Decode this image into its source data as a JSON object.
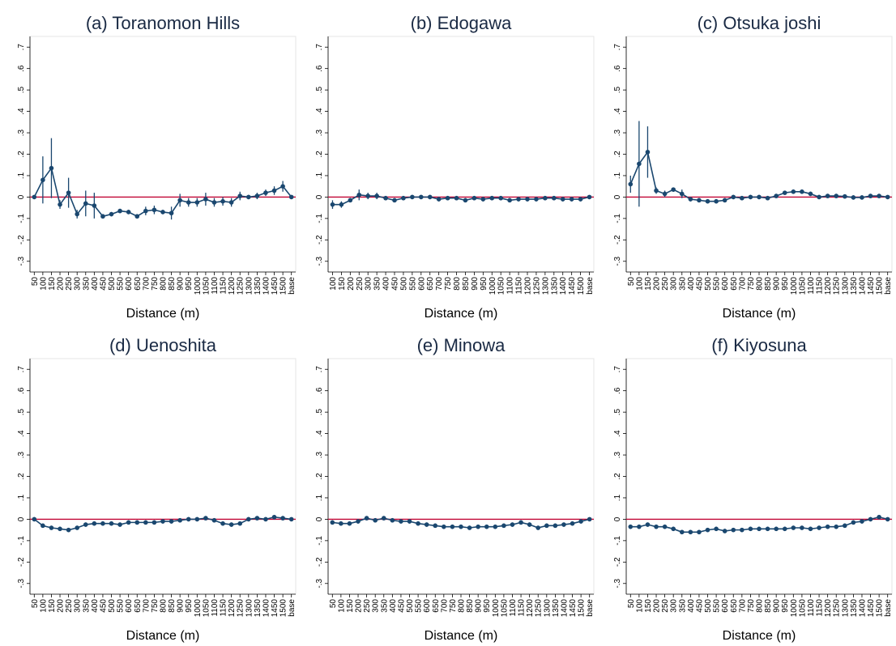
{
  "chart_data": [
    {
      "type": "line",
      "title": "(a) Toranomon Hills",
      "x_label": "Distance (m)",
      "color": "#1a476f",
      "reference_line": 0,
      "reference_color": "#c10534",
      "categories": [
        "50",
        "100",
        "150",
        "200",
        "250",
        "300",
        "350",
        "400",
        "450",
        "500",
        "550",
        "600",
        "650",
        "700",
        "750",
        "800",
        "850",
        "900",
        "950",
        "1000",
        "1050",
        "1100",
        "1150",
        "1200",
        "1250",
        "1300",
        "1350",
        "1400",
        "1450",
        "1500",
        "base"
      ],
      "values": [
        0,
        0.08,
        0.135,
        -0.035,
        0.02,
        -0.08,
        -0.03,
        -0.04,
        -0.09,
        -0.08,
        -0.065,
        -0.07,
        -0.09,
        -0.065,
        -0.06,
        -0.07,
        -0.075,
        -0.015,
        -0.025,
        -0.025,
        -0.01,
        -0.025,
        -0.02,
        -0.025,
        0.005,
        0,
        0.005,
        0.02,
        0.03,
        0.05,
        0
      ],
      "errors": [
        0,
        0.11,
        0.14,
        0.02,
        0.07,
        0.02,
        0.06,
        0.06,
        0.01,
        0.01,
        0.01,
        0.01,
        0.01,
        0.02,
        0.02,
        0.01,
        0.03,
        0.03,
        0.02,
        0.02,
        0.03,
        0.02,
        0.02,
        0.02,
        0.02,
        0.01,
        0.015,
        0.015,
        0.02,
        0.025,
        0
      ],
      "ylim": [
        -0.35,
        0.75
      ],
      "yticks": [
        {
          "value": -0.3,
          "label": "-.3"
        },
        {
          "value": -0.2,
          "label": "-.2"
        },
        {
          "value": -0.1,
          "label": "-.1"
        },
        0,
        {
          "value": 0.1,
          "label": ".1"
        },
        {
          "value": 0.2,
          "label": ".2"
        },
        {
          "value": 0.3,
          "label": ".3"
        },
        {
          "value": 0.4,
          "label": ".4"
        },
        {
          "value": 0.5,
          "label": ".5"
        },
        {
          "value": 0.6,
          "label": ".6"
        },
        {
          "value": 0.7,
          "label": ".7"
        }
      ]
    },
    {
      "type": "line",
      "title": "(b) Edogawa",
      "x_label": "Distance (m)",
      "color": "#1a476f",
      "reference_line": 0,
      "reference_color": "#c10534",
      "categories": [
        "100",
        "150",
        "200",
        "250",
        "300",
        "350",
        "400",
        "450",
        "500",
        "550",
        "600",
        "650",
        "700",
        "750",
        "800",
        "850",
        "900",
        "950",
        "1000",
        "1050",
        "1100",
        "1150",
        "1200",
        "1250",
        "1300",
        "1350",
        "1400",
        "1450",
        "1500",
        "base"
      ],
      "values": [
        -0.035,
        -0.035,
        -0.015,
        0.01,
        0.005,
        0.005,
        -0.005,
        -0.015,
        -0.005,
        0,
        0,
        0,
        -0.01,
        -0.005,
        -0.005,
        -0.015,
        -0.005,
        -0.01,
        -0.005,
        -0.005,
        -0.015,
        -0.01,
        -0.01,
        -0.01,
        -0.005,
        -0.005,
        -0.01,
        -0.01,
        -0.01,
        0
      ],
      "errors": [
        0.02,
        0.015,
        0.01,
        0.025,
        0.015,
        0.015,
        0.01,
        0.01,
        0.01,
        0.01,
        0.01,
        0.01,
        0.01,
        0.01,
        0.01,
        0.01,
        0.01,
        0.01,
        0.01,
        0.01,
        0.01,
        0.01,
        0.01,
        0.01,
        0.01,
        0.01,
        0.01,
        0.01,
        0.01,
        0
      ],
      "ylim": [
        -0.35,
        0.75
      ],
      "yticks": [
        {
          "value": -0.3,
          "label": "-.3"
        },
        {
          "value": -0.2,
          "label": "-.2"
        },
        {
          "value": -0.1,
          "label": "-.1"
        },
        0,
        {
          "value": 0.1,
          "label": ".1"
        },
        {
          "value": 0.2,
          "label": ".2"
        },
        {
          "value": 0.3,
          "label": ".3"
        },
        {
          "value": 0.4,
          "label": ".4"
        },
        {
          "value": 0.5,
          "label": ".5"
        },
        {
          "value": 0.6,
          "label": ".6"
        },
        {
          "value": 0.7,
          "label": ".7"
        }
      ]
    },
    {
      "type": "line",
      "title": "(c) Otsuka joshi",
      "x_label": "Distance (m)",
      "color": "#1a476f",
      "reference_line": 0,
      "reference_color": "#c10534",
      "categories": [
        "50",
        "100",
        "150",
        "200",
        "250",
        "300",
        "350",
        "400",
        "450",
        "500",
        "550",
        "600",
        "650",
        "700",
        "750",
        "800",
        "850",
        "900",
        "950",
        "1000",
        "1050",
        "1100",
        "1150",
        "1200",
        "1250",
        "1300",
        "1350",
        "1400",
        "1450",
        "1500",
        "base"
      ],
      "values": [
        0.06,
        0.155,
        0.21,
        0.03,
        0.015,
        0.035,
        0.015,
        -0.01,
        -0.015,
        -0.02,
        -0.02,
        -0.015,
        0,
        -0.005,
        0,
        0,
        -0.005,
        0.005,
        0.02,
        0.025,
        0.025,
        0.015,
        0,
        0.005,
        0.005,
        0.003,
        -0.002,
        -0.002,
        0.005,
        0.005,
        0
      ],
      "errors": [
        0.04,
        0.2,
        0.12,
        0.015,
        0.015,
        0.01,
        0.02,
        0.01,
        0.01,
        0.01,
        0.01,
        0.01,
        0.01,
        0.01,
        0.01,
        0.01,
        0.01,
        0.01,
        0.01,
        0.01,
        0.01,
        0.01,
        0.01,
        0.01,
        0.01,
        0.01,
        0.01,
        0.01,
        0.01,
        0.01,
        0
      ],
      "ylim": [
        -0.35,
        0.75
      ],
      "yticks": [
        {
          "value": -0.3,
          "label": "-.3"
        },
        {
          "value": -0.2,
          "label": "-.2"
        },
        {
          "value": -0.1,
          "label": "-.1"
        },
        0,
        {
          "value": 0.1,
          "label": ".1"
        },
        {
          "value": 0.2,
          "label": ".2"
        },
        {
          "value": 0.3,
          "label": ".3"
        },
        {
          "value": 0.4,
          "label": ".4"
        },
        {
          "value": 0.5,
          "label": ".5"
        },
        {
          "value": 0.6,
          "label": ".6"
        },
        {
          "value": 0.7,
          "label": ".7"
        }
      ]
    },
    {
      "type": "line",
      "title": "(d) Uenoshita",
      "x_label": "Distance (m)",
      "color": "#1a476f",
      "reference_line": 0,
      "reference_color": "#c10534",
      "categories": [
        "50",
        "100",
        "150",
        "200",
        "250",
        "300",
        "350",
        "400",
        "450",
        "500",
        "550",
        "600",
        "650",
        "700",
        "750",
        "800",
        "850",
        "900",
        "950",
        "1000",
        "1050",
        "1100",
        "1150",
        "1200",
        "1250",
        "1300",
        "1350",
        "1400",
        "1450",
        "1500",
        "base"
      ],
      "values": [
        0,
        -0.03,
        -0.04,
        -0.045,
        -0.05,
        -0.04,
        -0.025,
        -0.02,
        -0.02,
        -0.02,
        -0.025,
        -0.015,
        -0.015,
        -0.015,
        -0.015,
        -0.01,
        -0.01,
        -0.005,
        0,
        0,
        0.005,
        -0.005,
        -0.02,
        -0.025,
        -0.02,
        0,
        0.005,
        0,
        0.01,
        0.005,
        0
      ],
      "errors": [
        0.01,
        0.01,
        0.01,
        0.01,
        0.01,
        0.01,
        0.01,
        0.01,
        0.01,
        0.01,
        0.01,
        0.01,
        0.01,
        0.01,
        0.01,
        0.01,
        0.01,
        0.01,
        0.01,
        0.01,
        0.01,
        0.01,
        0.01,
        0.01,
        0.01,
        0.01,
        0.01,
        0.01,
        0.01,
        0.01,
        0
      ],
      "ylim": [
        -0.35,
        0.75
      ],
      "yticks": [
        {
          "value": -0.3,
          "label": "-.3"
        },
        {
          "value": -0.2,
          "label": "-.2"
        },
        {
          "value": -0.1,
          "label": "-.1"
        },
        0,
        {
          "value": 0.1,
          "label": ".1"
        },
        {
          "value": 0.2,
          "label": ".2"
        },
        {
          "value": 0.3,
          "label": ".3"
        },
        {
          "value": 0.4,
          "label": ".4"
        },
        {
          "value": 0.5,
          "label": ".5"
        },
        {
          "value": 0.6,
          "label": ".6"
        },
        {
          "value": 0.7,
          "label": ".7"
        }
      ]
    },
    {
      "type": "line",
      "title": "(e) Minowa",
      "x_label": "Distance (m)",
      "color": "#1a476f",
      "reference_line": 0,
      "reference_color": "#c10534",
      "categories": [
        "50",
        "100",
        "150",
        "200",
        "250",
        "300",
        "350",
        "400",
        "450",
        "500",
        "550",
        "600",
        "650",
        "700",
        "750",
        "800",
        "850",
        "900",
        "950",
        "1000",
        "1050",
        "1100",
        "1150",
        "1200",
        "1250",
        "1300",
        "1350",
        "1400",
        "1450",
        "1500",
        "base"
      ],
      "values": [
        -0.015,
        -0.02,
        -0.02,
        -0.01,
        0.005,
        -0.005,
        0.005,
        -0.005,
        -0.01,
        -0.01,
        -0.02,
        -0.025,
        -0.03,
        -0.035,
        -0.035,
        -0.035,
        -0.04,
        -0.035,
        -0.035,
        -0.035,
        -0.03,
        -0.025,
        -0.015,
        -0.025,
        -0.04,
        -0.03,
        -0.03,
        -0.025,
        -0.02,
        -0.01,
        0
      ],
      "errors": [
        0.01,
        0.01,
        0.01,
        0.01,
        0.01,
        0.01,
        0.01,
        0.01,
        0.01,
        0.01,
        0.01,
        0.01,
        0.01,
        0.01,
        0.01,
        0.01,
        0.01,
        0.01,
        0.01,
        0.01,
        0.01,
        0.01,
        0.01,
        0.01,
        0.01,
        0.01,
        0.01,
        0.01,
        0.01,
        0.01,
        0
      ],
      "ylim": [
        -0.35,
        0.75
      ],
      "yticks": [
        {
          "value": -0.3,
          "label": "-.3"
        },
        {
          "value": -0.2,
          "label": "-.2"
        },
        {
          "value": -0.1,
          "label": "-.1"
        },
        0,
        {
          "value": 0.1,
          "label": ".1"
        },
        {
          "value": 0.2,
          "label": ".2"
        },
        {
          "value": 0.3,
          "label": ".3"
        },
        {
          "value": 0.4,
          "label": ".4"
        },
        {
          "value": 0.5,
          "label": ".5"
        },
        {
          "value": 0.6,
          "label": ".6"
        },
        {
          "value": 0.7,
          "label": ".7"
        }
      ]
    },
    {
      "type": "line",
      "title": "(f) Kiyosuna",
      "x_label": "Distance (m)",
      "color": "#1a476f",
      "reference_line": 0,
      "reference_color": "#c10534",
      "categories": [
        "50",
        "100",
        "150",
        "200",
        "250",
        "300",
        "350",
        "400",
        "450",
        "500",
        "550",
        "600",
        "650",
        "700",
        "750",
        "800",
        "850",
        "900",
        "950",
        "1000",
        "1050",
        "1100",
        "1150",
        "1200",
        "1250",
        "1300",
        "1350",
        "1400",
        "1450",
        "1500",
        "base"
      ],
      "values": [
        -0.035,
        -0.035,
        -0.025,
        -0.035,
        -0.035,
        -0.045,
        -0.06,
        -0.06,
        -0.06,
        -0.05,
        -0.045,
        -0.055,
        -0.05,
        -0.05,
        -0.045,
        -0.045,
        -0.045,
        -0.045,
        -0.045,
        -0.04,
        -0.04,
        -0.045,
        -0.04,
        -0.035,
        -0.035,
        -0.03,
        -0.015,
        -0.01,
        0,
        0.01,
        0
      ],
      "errors": [
        0.01,
        0.01,
        0.01,
        0.01,
        0.01,
        0.01,
        0.01,
        0.01,
        0.01,
        0.01,
        0.01,
        0.01,
        0.01,
        0.01,
        0.01,
        0.01,
        0.01,
        0.01,
        0.01,
        0.01,
        0.01,
        0.01,
        0.01,
        0.01,
        0.01,
        0.01,
        0.01,
        0.01,
        0.01,
        0.01,
        0
      ],
      "ylim": [
        -0.35,
        0.75
      ],
      "yticks": [
        {
          "value": -0.3,
          "label": "-.3"
        },
        {
          "value": -0.2,
          "label": "-.2"
        },
        {
          "value": -0.1,
          "label": "-.1"
        },
        0,
        {
          "value": 0.1,
          "label": ".1"
        },
        {
          "value": 0.2,
          "label": ".2"
        },
        {
          "value": 0.3,
          "label": ".3"
        },
        {
          "value": 0.4,
          "label": ".4"
        },
        {
          "value": 0.5,
          "label": ".5"
        },
        {
          "value": 0.6,
          "label": ".6"
        },
        {
          "value": 0.7,
          "label": ".7"
        }
      ]
    }
  ]
}
